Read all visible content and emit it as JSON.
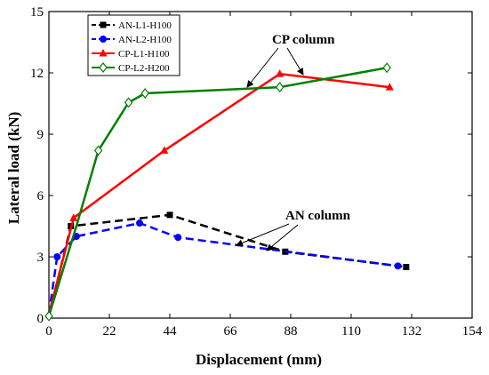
{
  "chart_data": {
    "type": "line",
    "xlabel": "Displacement (mm)",
    "ylabel": "Lateral load (kN)",
    "xlim": [
      0,
      154
    ],
    "ylim": [
      0,
      15
    ],
    "xticks": [
      0,
      22,
      44,
      66,
      88,
      110,
      132,
      154
    ],
    "yticks": [
      0,
      3,
      6,
      9,
      12,
      15
    ],
    "grid": false,
    "legend_position": "top-left",
    "series": [
      {
        "name": "AN-L1-H100",
        "color": "#000000",
        "line_style": "dashed",
        "marker": "square",
        "points": [
          [
            0,
            0.1
          ],
          [
            8,
            4.5
          ],
          [
            44,
            5.05
          ],
          [
            86,
            3.25
          ],
          [
            130,
            2.5
          ]
        ],
        "marked": [
          false,
          true,
          true,
          true,
          true
        ]
      },
      {
        "name": "AN-L2-H100",
        "color": "#0000ff",
        "line_style": "dashed",
        "marker": "circle",
        "points": [
          [
            0,
            0.2
          ],
          [
            3,
            3.0
          ],
          [
            10,
            4.0
          ],
          [
            33,
            4.65
          ],
          [
            47,
            3.95
          ],
          [
            127,
            2.55
          ]
        ],
        "marked": [
          false,
          true,
          true,
          true,
          true,
          true
        ]
      },
      {
        "name": "CP-L1-H100",
        "color": "#ff0000",
        "line_style": "solid",
        "marker": "triangle",
        "points": [
          [
            0,
            0.2
          ],
          [
            9,
            4.9
          ],
          [
            42,
            8.2
          ],
          [
            84,
            11.95
          ],
          [
            124,
            11.3
          ]
        ],
        "marked": [
          false,
          true,
          true,
          true,
          true
        ]
      },
      {
        "name": "CP-L2-H200",
        "color": "#008000",
        "line_style": "solid",
        "marker": "diamond",
        "points": [
          [
            0,
            0.1
          ],
          [
            10,
            4.5
          ],
          [
            18,
            8.2
          ],
          [
            29,
            10.55
          ],
          [
            35,
            11.0
          ],
          [
            84,
            11.3
          ],
          [
            123,
            12.25
          ]
        ],
        "marked": [
          true,
          false,
          true,
          true,
          true,
          true,
          true
        ]
      }
    ],
    "annotations": [
      {
        "text": "CP column"
      },
      {
        "text": "AN column"
      }
    ]
  }
}
